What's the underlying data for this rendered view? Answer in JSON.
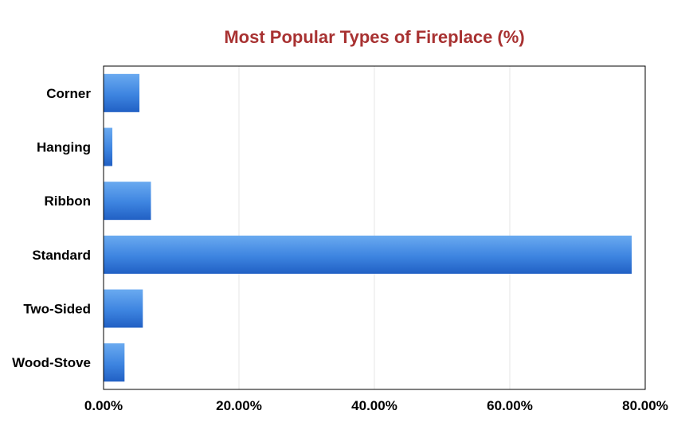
{
  "chart_data": {
    "type": "bar",
    "orientation": "horizontal",
    "title": "Most Popular Types of Fireplace (%)",
    "categories": [
      "Corner",
      "Hanging",
      "Ribbon",
      "Standard",
      "Two-Sided",
      "Wood-Stove"
    ],
    "values": [
      5.3,
      1.3,
      7.0,
      78.0,
      5.8,
      3.1
    ],
    "xlim": [
      0,
      80
    ],
    "ticks": [
      0,
      20,
      40,
      60,
      80
    ],
    "tick_labels": [
      "0.00%",
      "20.00%",
      "40.00%",
      "60.00%",
      "80.00%"
    ],
    "xlabel": "",
    "ylabel": "",
    "grid": "vertical",
    "legend": "none"
  },
  "colors": {
    "title": "#a83232",
    "bar_light": "#6aaaf0",
    "bar_mid": "#3d84e0",
    "bar_dark": "#2160c4",
    "grid": "#e4e4e4",
    "frame": "#000000"
  }
}
